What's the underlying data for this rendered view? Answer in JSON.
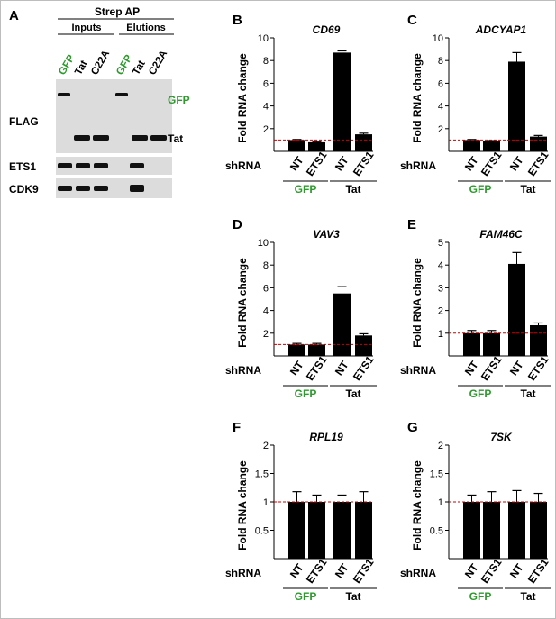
{
  "colors": {
    "green": "#2e9a2e",
    "bar": "#000000",
    "reference_line": "#cc0000",
    "blot_bg": "#dcdcdc"
  },
  "panel_a": {
    "letter": "A",
    "header": "Strep AP",
    "groups": [
      "Inputs",
      "Elutions"
    ],
    "lanes": [
      {
        "label": "GFP",
        "color": "green"
      },
      {
        "label": "Tat",
        "color": "black"
      },
      {
        "label": "C22A",
        "color": "black"
      },
      {
        "label": "GFP",
        "color": "green"
      },
      {
        "label": "Tat",
        "color": "black"
      },
      {
        "label": "C22A",
        "color": "black"
      }
    ],
    "blots": [
      {
        "label": "FLAG",
        "band_labels": [
          "GFP",
          "Tat"
        ]
      },
      {
        "label": "ETS1"
      },
      {
        "label": "CDK9"
      }
    ]
  },
  "shared": {
    "y_label": "Fold RNA change",
    "shrna_label": "shRNA",
    "x_labels": [
      "NT",
      "ETS1",
      "NT",
      "ETS1"
    ],
    "groups": [
      {
        "label": "GFP",
        "color": "green"
      },
      {
        "label": "Tat",
        "color": "black"
      }
    ]
  },
  "chart_data": [
    {
      "panel": "B",
      "type": "bar",
      "title": "CD69",
      "ylabel": "Fold RNA change",
      "ylim": [
        0,
        10
      ],
      "yticks": [
        "2",
        "4",
        "6",
        "8",
        "10"
      ],
      "categories": [
        "GFP NT",
        "GFP ETS1",
        "Tat NT",
        "Tat ETS1"
      ],
      "values": [
        1.0,
        0.8,
        8.7,
        1.5
      ],
      "errors": [
        0.05,
        0.05,
        0.15,
        0.1
      ],
      "reference_line": 1
    },
    {
      "panel": "C",
      "type": "bar",
      "title": "ADCYAP1",
      "ylabel": "Fold RNA change",
      "ylim": [
        0,
        10
      ],
      "yticks": [
        "2",
        "4",
        "6",
        "8",
        "10"
      ],
      "categories": [
        "GFP NT",
        "GFP ETS1",
        "Tat NT",
        "Tat ETS1"
      ],
      "values": [
        1.0,
        0.9,
        7.9,
        1.3
      ],
      "errors": [
        0.05,
        0.05,
        0.8,
        0.1
      ],
      "reference_line": 1
    },
    {
      "panel": "D",
      "type": "bar",
      "title": "VAV3",
      "ylabel": "Fold RNA change",
      "ylim": [
        0,
        10
      ],
      "yticks": [
        "2",
        "4",
        "6",
        "8",
        "10"
      ],
      "categories": [
        "GFP NT",
        "GFP ETS1",
        "Tat NT",
        "Tat ETS1"
      ],
      "values": [
        1.0,
        1.0,
        5.5,
        1.8
      ],
      "errors": [
        0.1,
        0.1,
        0.6,
        0.15
      ],
      "reference_line": 1
    },
    {
      "panel": "E",
      "type": "bar",
      "title": "FAM46C",
      "ylabel": "Fold RNA change",
      "ylim": [
        0,
        5
      ],
      "yticks": [
        "1",
        "2",
        "3",
        "4",
        "5"
      ],
      "categories": [
        "GFP NT",
        "GFP ETS1",
        "Tat NT",
        "Tat ETS1"
      ],
      "values": [
        1.0,
        1.0,
        4.05,
        1.35
      ],
      "errors": [
        0.12,
        0.12,
        0.5,
        0.1
      ],
      "reference_line": 1
    },
    {
      "panel": "F",
      "type": "bar",
      "title": "RPL19",
      "ylabel": "Fold RNA change",
      "ylim": [
        0,
        2
      ],
      "yticks": [
        "0.5",
        "1",
        "1.5",
        "2"
      ],
      "categories": [
        "GFP NT",
        "GFP ETS1",
        "Tat NT",
        "Tat ETS1"
      ],
      "values": [
        1.0,
        1.0,
        1.0,
        1.0
      ],
      "errors": [
        0.18,
        0.12,
        0.12,
        0.18
      ],
      "reference_line": 1
    },
    {
      "panel": "G",
      "type": "bar",
      "title": "7SK",
      "ylabel": "Fold RNA change",
      "ylim": [
        0,
        2
      ],
      "yticks": [
        "0.5",
        "1",
        "1.5",
        "2"
      ],
      "categories": [
        "GFP NT",
        "GFP ETS1",
        "Tat NT",
        "Tat ETS1"
      ],
      "values": [
        1.0,
        1.0,
        1.0,
        1.0
      ],
      "errors": [
        0.12,
        0.18,
        0.2,
        0.15
      ],
      "reference_line": 1
    }
  ]
}
